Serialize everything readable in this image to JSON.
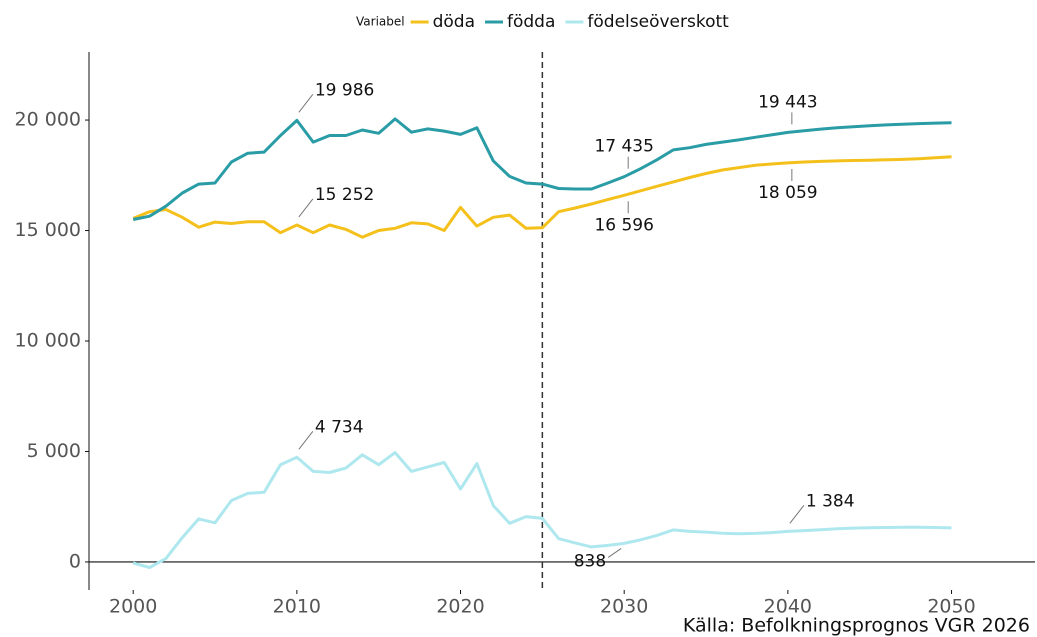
{
  "chart_data": {
    "type": "line",
    "legend_title": "Variabel",
    "source": "Källa: Befolkningsprognos VGR 2026",
    "x": [
      2000,
      2001,
      2002,
      2003,
      2004,
      2005,
      2006,
      2007,
      2008,
      2009,
      2010,
      2011,
      2012,
      2013,
      2014,
      2015,
      2016,
      2017,
      2018,
      2019,
      2020,
      2021,
      2022,
      2023,
      2024,
      2025,
      2026,
      2027,
      2028,
      2029,
      2030,
      2031,
      2032,
      2033,
      2034,
      2035,
      2036,
      2037,
      2038,
      2039,
      2040,
      2041,
      2042,
      2043,
      2044,
      2045,
      2046,
      2047,
      2048,
      2049,
      2050
    ],
    "series": [
      {
        "name": "döda",
        "color": "#f4c01c",
        "values": [
          15550,
          15850,
          15950,
          15600,
          15150,
          15380,
          15320,
          15400,
          15400,
          14900,
          15252,
          14900,
          15250,
          15050,
          14700,
          15000,
          15100,
          15350,
          15300,
          15000,
          16050,
          15200,
          15600,
          15700,
          15100,
          15130,
          15850,
          16020,
          16200,
          16400,
          16596,
          16800,
          17000,
          17200,
          17400,
          17580,
          17740,
          17850,
          17950,
          18010,
          18059,
          18100,
          18130,
          18150,
          18170,
          18180,
          18200,
          18220,
          18250,
          18290,
          18340
        ]
      },
      {
        "name": "födda",
        "color": "#2a9ca6",
        "values": [
          15500,
          15650,
          16100,
          16700,
          17100,
          17150,
          18100,
          18500,
          18550,
          19300,
          19986,
          19000,
          19300,
          19300,
          19550,
          19400,
          20050,
          19450,
          19600,
          19500,
          19350,
          19650,
          18150,
          17450,
          17150,
          17100,
          16900,
          16880,
          16880,
          17150,
          17435,
          17800,
          18200,
          18650,
          18750,
          18900,
          19000,
          19100,
          19220,
          19330,
          19443,
          19520,
          19590,
          19650,
          19700,
          19740,
          19780,
          19810,
          19840,
          19860,
          19880
        ]
      },
      {
        "name": "födelseöverskott",
        "color": "#aee8ee",
        "values": [
          -50,
          -250,
          150,
          1100,
          1950,
          1770,
          2780,
          3100,
          3150,
          4400,
          4734,
          4100,
          4050,
          4250,
          4850,
          4400,
          4950,
          4100,
          4300,
          4500,
          3300,
          4450,
          2550,
          1750,
          2050,
          1970,
          1050,
          860,
          680,
          750,
          838,
          1000,
          1200,
          1450,
          1380,
          1350,
          1300,
          1280,
          1290,
          1330,
          1384,
          1420,
          1460,
          1500,
          1530,
          1550,
          1560,
          1570,
          1570,
          1560,
          1540
        ]
      }
    ],
    "annotations": [
      {
        "x": 2010,
        "y": 19986,
        "label": "19 986",
        "position": "above-right"
      },
      {
        "x": 2010,
        "y": 15252,
        "label": "15 252",
        "position": "above-right"
      },
      {
        "x": 2010,
        "y": 4734,
        "label": "4 734",
        "position": "above-right"
      },
      {
        "x": 2030,
        "y": 17435,
        "label": "17 435",
        "position": "above"
      },
      {
        "x": 2030,
        "y": 16596,
        "label": "16 596",
        "position": "below"
      },
      {
        "x": 2030,
        "y": 838,
        "label": "838",
        "position": "below-left"
      },
      {
        "x": 2040,
        "y": 19443,
        "label": "19 443",
        "position": "above"
      },
      {
        "x": 2040,
        "y": 18059,
        "label": "18 059",
        "position": "below"
      },
      {
        "x": 2040,
        "y": 1384,
        "label": "1 384",
        "position": "above-right"
      }
    ],
    "vline": 2025,
    "hline": 0,
    "xlim": [
      1997.3,
      2055.1
    ],
    "ylim": [
      -1270,
      23080
    ],
    "xticks": [
      2000,
      2010,
      2020,
      2030,
      2040,
      2050
    ],
    "yticks": [
      0,
      {
        "value": 5000,
        "label": "5 000"
      },
      {
        "value": 10000,
        "label": "10 000"
      },
      {
        "value": 15000,
        "label": "15 000"
      },
      {
        "value": 20000,
        "label": "20 000"
      }
    ]
  }
}
